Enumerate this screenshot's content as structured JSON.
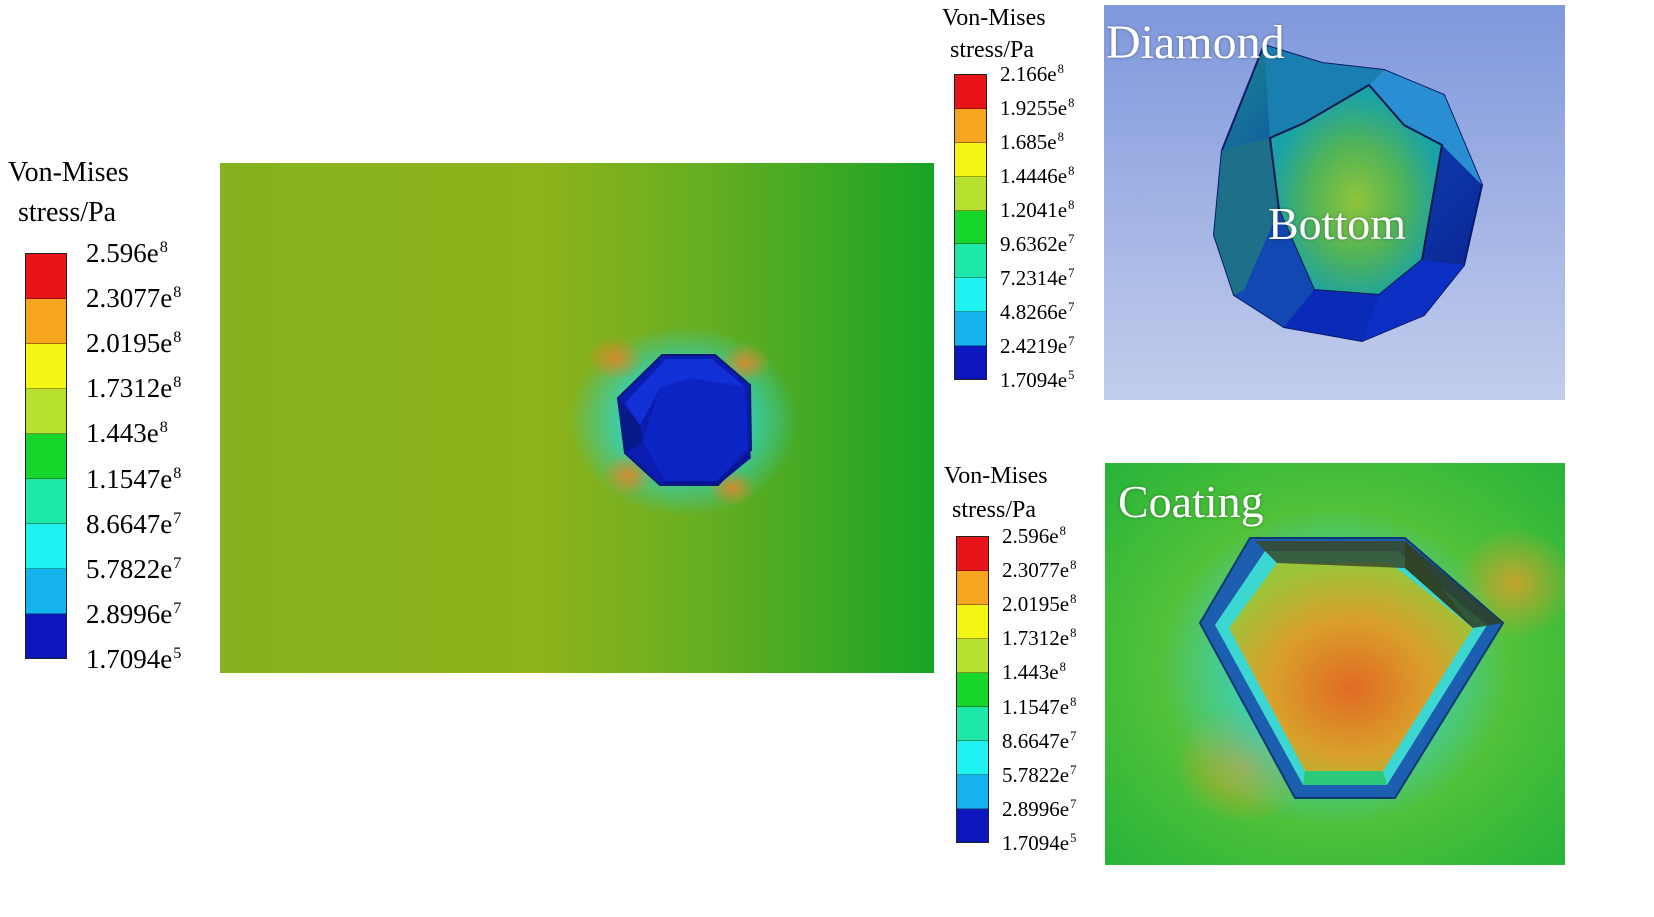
{
  "legend_left": {
    "title_line1": "Von-Mises",
    "title_line2": "stress/Pa",
    "ticks": [
      {
        "mant": "2.596e",
        "exp": "8"
      },
      {
        "mant": "2.3077e",
        "exp": "8"
      },
      {
        "mant": "2.0195e",
        "exp": "8"
      },
      {
        "mant": "1.7312e",
        "exp": "8"
      },
      {
        "mant": "1.443e",
        "exp": "8"
      },
      {
        "mant": "1.1547e",
        "exp": "8"
      },
      {
        "mant": "8.6647e",
        "exp": "7"
      },
      {
        "mant": "5.7822e",
        "exp": "7"
      },
      {
        "mant": "2.8996e",
        "exp": "7"
      },
      {
        "mant": "1.7094e",
        "exp": "5"
      }
    ]
  },
  "legend_top_right": {
    "title_line1": "Von-Mises",
    "title_line2": "stress/Pa",
    "ticks": [
      {
        "mant": "2.166e",
        "exp": "8"
      },
      {
        "mant": "1.9255e",
        "exp": "8"
      },
      {
        "mant": "1.685e",
        "exp": "8"
      },
      {
        "mant": "1.4446e",
        "exp": "8"
      },
      {
        "mant": "1.2041e",
        "exp": "8"
      },
      {
        "mant": "9.6362e",
        "exp": "7"
      },
      {
        "mant": "7.2314e",
        "exp": "7"
      },
      {
        "mant": "4.8266e",
        "exp": "7"
      },
      {
        "mant": "2.4219e",
        "exp": "7"
      },
      {
        "mant": "1.7094e",
        "exp": "5"
      }
    ]
  },
  "legend_bottom_right": {
    "title_line1": "Von-Mises",
    "title_line2": "stress/Pa",
    "ticks": [
      {
        "mant": "2.596e",
        "exp": "8"
      },
      {
        "mant": "2.3077e",
        "exp": "8"
      },
      {
        "mant": "2.0195e",
        "exp": "8"
      },
      {
        "mant": "1.7312e",
        "exp": "8"
      },
      {
        "mant": "1.443e",
        "exp": "8"
      },
      {
        "mant": "1.1547e",
        "exp": "8"
      },
      {
        "mant": "8.6647e",
        "exp": "7"
      },
      {
        "mant": "5.7822e",
        "exp": "7"
      },
      {
        "mant": "2.8996e",
        "exp": "7"
      },
      {
        "mant": "1.7094e",
        "exp": "5"
      }
    ]
  },
  "colormap": [
    "#e8141a",
    "#f7a51e",
    "#f5f514",
    "#b8e02f",
    "#16d52b",
    "#1ee8a8",
    "#1ff2f0",
    "#14b3ee",
    "#0b17bd"
  ],
  "panels": {
    "diamond_label": "Diamond",
    "bottom_label": "Bottom",
    "coating_label": "Coating"
  }
}
